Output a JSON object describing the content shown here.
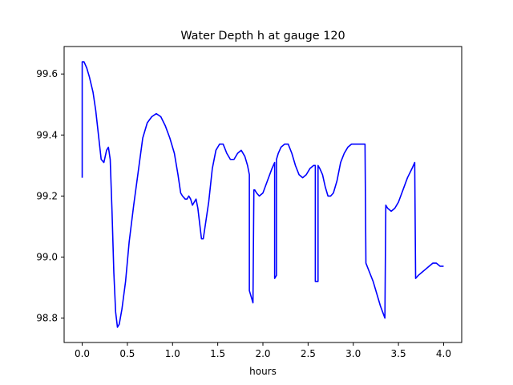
{
  "chart_data": {
    "type": "line",
    "title": "Water Depth h at gauge 120",
    "xlabel": "hours",
    "ylabel": "",
    "xlim": [
      -0.2,
      4.2
    ],
    "ylim": [
      98.72,
      99.69
    ],
    "x_ticks": [
      0.0,
      0.5,
      1.0,
      1.5,
      2.0,
      2.5,
      3.0,
      3.5,
      4.0
    ],
    "x_tick_labels": [
      "0.0",
      "0.5",
      "1.0",
      "1.5",
      "2.0",
      "2.5",
      "3.0",
      "3.5",
      "4.0"
    ],
    "y_ticks": [
      98.8,
      99.0,
      99.2,
      99.4,
      99.6
    ],
    "y_tick_labels": [
      "98.8",
      "99.0",
      "99.2",
      "99.4",
      "99.6"
    ],
    "grid": false,
    "legend": "none",
    "series": [
      {
        "color": "#0000ff",
        "points": [
          [
            0.0,
            99.26
          ],
          [
            0.0,
            99.64
          ],
          [
            0.02,
            99.64
          ],
          [
            0.05,
            99.62
          ],
          [
            0.08,
            99.59
          ],
          [
            0.12,
            99.54
          ],
          [
            0.15,
            99.48
          ],
          [
            0.18,
            99.4
          ],
          [
            0.21,
            99.32
          ],
          [
            0.24,
            99.31
          ],
          [
            0.27,
            99.35
          ],
          [
            0.29,
            99.36
          ],
          [
            0.31,
            99.32
          ],
          [
            0.33,
            99.15
          ],
          [
            0.35,
            98.95
          ],
          [
            0.37,
            98.82
          ],
          [
            0.39,
            98.77
          ],
          [
            0.41,
            98.78
          ],
          [
            0.44,
            98.83
          ],
          [
            0.48,
            98.92
          ],
          [
            0.52,
            99.05
          ],
          [
            0.57,
            99.17
          ],
          [
            0.62,
            99.28
          ],
          [
            0.67,
            99.39
          ],
          [
            0.72,
            99.44
          ],
          [
            0.77,
            99.46
          ],
          [
            0.82,
            99.47
          ],
          [
            0.87,
            99.46
          ],
          [
            0.92,
            99.43
          ],
          [
            0.97,
            99.39
          ],
          [
            1.02,
            99.34
          ],
          [
            1.06,
            99.27
          ],
          [
            1.09,
            99.21
          ],
          [
            1.11,
            99.2
          ],
          [
            1.14,
            99.19
          ],
          [
            1.16,
            99.19
          ],
          [
            1.18,
            99.2
          ],
          [
            1.2,
            99.19
          ],
          [
            1.22,
            99.17
          ],
          [
            1.24,
            99.18
          ],
          [
            1.26,
            99.19
          ],
          [
            1.28,
            99.16
          ],
          [
            1.3,
            99.11
          ],
          [
            1.32,
            99.06
          ],
          [
            1.34,
            99.06
          ],
          [
            1.37,
            99.12
          ],
          [
            1.4,
            99.18
          ],
          [
            1.44,
            99.29
          ],
          [
            1.48,
            99.35
          ],
          [
            1.52,
            99.37
          ],
          [
            1.56,
            99.37
          ],
          [
            1.6,
            99.34
          ],
          [
            1.64,
            99.32
          ],
          [
            1.68,
            99.32
          ],
          [
            1.72,
            99.34
          ],
          [
            1.76,
            99.35
          ],
          [
            1.8,
            99.33
          ],
          [
            1.83,
            99.3
          ],
          [
            1.85,
            99.27
          ],
          [
            1.85,
            98.89
          ],
          [
            1.87,
            98.87
          ],
          [
            1.89,
            98.85
          ],
          [
            1.9,
            99.22
          ],
          [
            1.91,
            99.22
          ],
          [
            1.93,
            99.21
          ],
          [
            1.96,
            99.2
          ],
          [
            2.0,
            99.21
          ],
          [
            2.05,
            99.25
          ],
          [
            2.1,
            99.29
          ],
          [
            2.13,
            99.31
          ],
          [
            2.13,
            98.93
          ],
          [
            2.15,
            98.94
          ],
          [
            2.15,
            99.32
          ],
          [
            2.17,
            99.34
          ],
          [
            2.2,
            99.36
          ],
          [
            2.24,
            99.37
          ],
          [
            2.28,
            99.37
          ],
          [
            2.32,
            99.34
          ],
          [
            2.36,
            99.3
          ],
          [
            2.4,
            99.27
          ],
          [
            2.44,
            99.26
          ],
          [
            2.48,
            99.27
          ],
          [
            2.52,
            99.29
          ],
          [
            2.56,
            99.3
          ],
          [
            2.58,
            99.3
          ],
          [
            2.58,
            98.92
          ],
          [
            2.61,
            98.92
          ],
          [
            2.61,
            99.3
          ],
          [
            2.63,
            99.29
          ],
          [
            2.66,
            99.27
          ],
          [
            2.69,
            99.23
          ],
          [
            2.72,
            99.2
          ],
          [
            2.75,
            99.2
          ],
          [
            2.78,
            99.21
          ],
          [
            2.82,
            99.25
          ],
          [
            2.86,
            99.31
          ],
          [
            2.9,
            99.34
          ],
          [
            2.94,
            99.36
          ],
          [
            2.98,
            99.37
          ],
          [
            3.02,
            99.37
          ],
          [
            3.06,
            99.37
          ],
          [
            3.1,
            99.37
          ],
          [
            3.13,
            99.37
          ],
          [
            3.14,
            98.98
          ],
          [
            3.18,
            98.95
          ],
          [
            3.22,
            98.92
          ],
          [
            3.26,
            98.88
          ],
          [
            3.3,
            98.84
          ],
          [
            3.35,
            98.8
          ],
          [
            3.36,
            99.17
          ],
          [
            3.38,
            99.16
          ],
          [
            3.42,
            99.15
          ],
          [
            3.46,
            99.16
          ],
          [
            3.5,
            99.18
          ],
          [
            3.55,
            99.22
          ],
          [
            3.6,
            99.26
          ],
          [
            3.65,
            99.29
          ],
          [
            3.68,
            99.31
          ],
          [
            3.69,
            98.93
          ],
          [
            3.72,
            98.94
          ],
          [
            3.76,
            98.95
          ],
          [
            3.8,
            98.96
          ],
          [
            3.84,
            98.97
          ],
          [
            3.88,
            98.98
          ],
          [
            3.92,
            98.98
          ],
          [
            3.96,
            98.97
          ],
          [
            4.0,
            98.97
          ]
        ]
      }
    ]
  }
}
